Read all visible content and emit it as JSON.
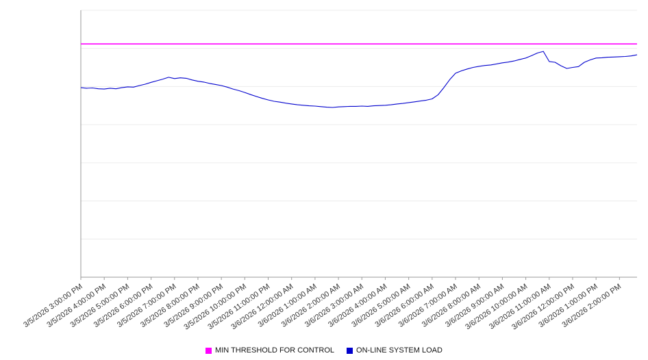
{
  "chart_data": {
    "type": "line",
    "title": "",
    "xlabel": "",
    "ylabel": "",
    "ylim": [
      0,
      100
    ],
    "grid": true,
    "grid_divisions": 7,
    "legend_position": "bottom",
    "categories": [
      "3/5/2026 3:00:00 PM",
      "3/5/2026 4:00:00 PM",
      "3/5/2026 5:00:00 PM",
      "3/5/2026 6:00:00 PM",
      "3/5/2026 7:00:00 PM",
      "3/5/2026 8:00:00 PM",
      "3/5/2026 9:00:00 PM",
      "3/5/2026 10:00:00 PM",
      "3/5/2026 11:00:00 PM",
      "3/6/2026 12:00:00 AM",
      "3/6/2026 1:00:00 AM",
      "3/6/2026 2:00:00 AM",
      "3/6/2026 3:00:00 AM",
      "3/6/2026 4:00:00 AM",
      "3/6/2026 5:00:00 AM",
      "3/6/2026 6:00:00 AM",
      "3/6/2026 7:00:00 AM",
      "3/6/2026 8:00:00 AM",
      "3/6/2026 9:00:00 AM",
      "3/6/2026 10:00:00 AM",
      "3/6/2026 11:00:00 AM",
      "3/6/2026 12:00:00 PM",
      "3/6/2026 1:00:00 PM",
      "3/6/2026 2:00:00 PM"
    ],
    "x_hours_span": 23.75,
    "sample_interval_minutes": 15,
    "series": [
      {
        "name": "MIN THRESHOLD FOR CONTROL",
        "color": "#ff00ff",
        "kind": "threshold",
        "value": 87.4
      },
      {
        "name": "ON-LINE SYSTEM LOAD",
        "color": "#0000cd",
        "kind": "line",
        "values": [
          71.0,
          70.8,
          70.9,
          70.6,
          70.5,
          70.8,
          70.6,
          71.0,
          71.3,
          71.2,
          71.8,
          72.3,
          73.0,
          73.6,
          74.2,
          74.9,
          74.4,
          74.7,
          74.5,
          73.9,
          73.4,
          73.1,
          72.6,
          72.2,
          71.8,
          71.2,
          70.5,
          69.9,
          69.2,
          68.4,
          67.7,
          67.0,
          66.4,
          65.9,
          65.6,
          65.2,
          64.9,
          64.6,
          64.4,
          64.2,
          64.1,
          63.9,
          63.7,
          63.6,
          63.8,
          63.9,
          64.0,
          64.0,
          64.1,
          64.0,
          64.2,
          64.3,
          64.4,
          64.6,
          64.9,
          65.1,
          65.4,
          65.7,
          66.0,
          66.3,
          66.8,
          68.3,
          71.0,
          74.0,
          76.4,
          77.3,
          78.0,
          78.6,
          79.0,
          79.3,
          79.5,
          79.9,
          80.3,
          80.6,
          81.0,
          81.6,
          82.1,
          83.0,
          84.0,
          84.6,
          80.8,
          80.5,
          79.2,
          78.2,
          78.6,
          78.9,
          80.5,
          81.4,
          82.1,
          82.2,
          82.4,
          82.5,
          82.6,
          82.7,
          82.9,
          83.3
        ]
      }
    ]
  }
}
